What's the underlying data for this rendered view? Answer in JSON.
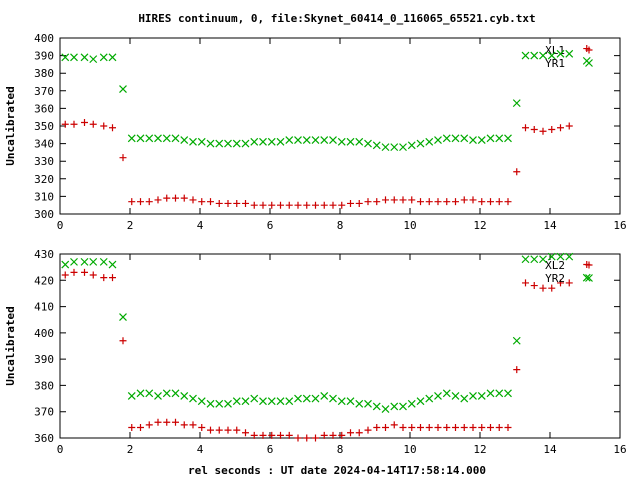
{
  "chart_data": {
    "type": "scatter",
    "title": "HIRES continuum, 0, file:Skynet_60414_0_116065_65521.cyb.txt",
    "xlabel": "rel seconds : UT date 2024-04-14T17:58:14.000",
    "colors": {
      "red": "#cc0000",
      "green": "#00aa00"
    },
    "x_shared": [
      0.2,
      0.4,
      0.8,
      1.0,
      1.2,
      1.4,
      1.8,
      2.0,
      2.2,
      2.4,
      2.6,
      2.8,
      3.0,
      3.2,
      3.4,
      3.6,
      3.8,
      4.0,
      4.2,
      4.4,
      4.6,
      4.8,
      5.0,
      5.2,
      5.4,
      5.6,
      5.8,
      6.0,
      6.2,
      6.4,
      6.6,
      6.8,
      7.0,
      7.2,
      7.4,
      7.6,
      7.8,
      8.0,
      8.2,
      8.4,
      8.6,
      8.8,
      9.0,
      9.2,
      9.4,
      9.6,
      9.8,
      10.0,
      10.2,
      10.4,
      10.6,
      10.8,
      11.0,
      11.2,
      11.4,
      11.6,
      11.8,
      12.0,
      12.2,
      12.4,
      12.6,
      12.8,
      13.0,
      13.2,
      13.4,
      13.6,
      13.8,
      14.0,
      14.2,
      14.4,
      15.0
    ],
    "panels": [
      {
        "ylabel": "Uncalibrated",
        "xlim": [
          0,
          16
        ],
        "ylim": [
          300,
          400
        ],
        "xticks": [
          0,
          2,
          4,
          6,
          8,
          10,
          12,
          14,
          16
        ],
        "yticks": [
          300,
          310,
          320,
          330,
          340,
          350,
          360,
          370,
          380,
          390,
          400
        ],
        "series": [
          {
            "name": "XL1",
            "marker": "plus",
            "color": "#cc0000",
            "x": [
              0.15,
              0.4,
              0.7,
              0.95,
              1.25,
              1.5,
              1.8,
              2.05,
              2.3,
              2.55,
              2.8,
              3.05,
              3.3,
              3.55,
              3.8,
              4.05,
              4.3,
              4.55,
              4.8,
              5.05,
              5.3,
              5.55,
              5.8,
              6.05,
              6.3,
              6.55,
              6.8,
              7.05,
              7.3,
              7.55,
              7.8,
              8.05,
              8.3,
              8.55,
              8.8,
              9.05,
              9.3,
              9.55,
              9.8,
              10.05,
              10.3,
              10.55,
              10.8,
              11.05,
              11.3,
              11.55,
              11.8,
              12.05,
              12.3,
              12.55,
              12.8,
              13.05,
              13.3,
              13.55,
              13.8,
              14.05,
              14.3,
              14.55,
              15.05
            ],
            "y": [
              351,
              351,
              352,
              351,
              350,
              349,
              332,
              307,
              307,
              307,
              308,
              309,
              309,
              309,
              308,
              307,
              307,
              306,
              306,
              306,
              306,
              305,
              305,
              305,
              305,
              305,
              305,
              305,
              305,
              305,
              305,
              305,
              306,
              306,
              307,
              307,
              308,
              308,
              308,
              308,
              307,
              307,
              307,
              307,
              307,
              308,
              308,
              307,
              307,
              307,
              307,
              324,
              349,
              348,
              347,
              348,
              349,
              350,
              394
            ]
          },
          {
            "name": "YR1",
            "marker": "cross",
            "color": "#00aa00",
            "x": [
              0.15,
              0.4,
              0.7,
              0.95,
              1.25,
              1.5,
              1.8,
              2.05,
              2.3,
              2.55,
              2.8,
              3.05,
              3.3,
              3.55,
              3.8,
              4.05,
              4.3,
              4.55,
              4.8,
              5.05,
              5.3,
              5.55,
              5.8,
              6.05,
              6.3,
              6.55,
              6.8,
              7.05,
              7.3,
              7.55,
              7.8,
              8.05,
              8.3,
              8.55,
              8.8,
              9.05,
              9.3,
              9.55,
              9.8,
              10.05,
              10.3,
              10.55,
              10.8,
              11.05,
              11.3,
              11.55,
              11.8,
              12.05,
              12.3,
              12.55,
              12.8,
              13.05,
              13.3,
              13.55,
              13.8,
              14.05,
              14.3,
              14.55,
              15.05
            ],
            "y": [
              389,
              389,
              389,
              388,
              389,
              389,
              371,
              343,
              343,
              343,
              343,
              343,
              343,
              342,
              341,
              341,
              340,
              340,
              340,
              340,
              340,
              341,
              341,
              341,
              341,
              342,
              342,
              342,
              342,
              342,
              342,
              341,
              341,
              341,
              340,
              339,
              338,
              338,
              338,
              339,
              340,
              341,
              342,
              343,
              343,
              343,
              342,
              342,
              343,
              343,
              343,
              363,
              390,
              390,
              390,
              390,
              391,
              391,
              387
            ]
          }
        ]
      },
      {
        "ylabel": "Uncalibrated",
        "xlim": [
          0,
          16
        ],
        "ylim": [
          360,
          430
        ],
        "xticks": [
          0,
          2,
          4,
          6,
          8,
          10,
          12,
          14,
          16
        ],
        "yticks": [
          360,
          370,
          380,
          390,
          400,
          410,
          420,
          430
        ],
        "series": [
          {
            "name": "XL2",
            "marker": "plus",
            "color": "#cc0000",
            "x": [
              0.15,
              0.4,
              0.7,
              0.95,
              1.25,
              1.5,
              1.8,
              2.05,
              2.3,
              2.55,
              2.8,
              3.05,
              3.3,
              3.55,
              3.8,
              4.05,
              4.3,
              4.55,
              4.8,
              5.05,
              5.3,
              5.55,
              5.8,
              6.05,
              6.3,
              6.55,
              6.8,
              7.05,
              7.3,
              7.55,
              7.8,
              8.05,
              8.3,
              8.55,
              8.8,
              9.05,
              9.3,
              9.55,
              9.8,
              10.05,
              10.3,
              10.55,
              10.8,
              11.05,
              11.3,
              11.55,
              11.8,
              12.05,
              12.3,
              12.55,
              12.8,
              13.05,
              13.3,
              13.55,
              13.8,
              14.05,
              14.3,
              14.55,
              15.05
            ],
            "y": [
              422,
              423,
              423,
              422,
              421,
              421,
              397,
              364,
              364,
              365,
              366,
              366,
              366,
              365,
              365,
              364,
              363,
              363,
              363,
              363,
              362,
              361,
              361,
              361,
              361,
              361,
              360,
              360,
              360,
              361,
              361,
              361,
              362,
              362,
              363,
              364,
              364,
              365,
              364,
              364,
              364,
              364,
              364,
              364,
              364,
              364,
              364,
              364,
              364,
              364,
              364,
              386,
              419,
              418,
              417,
              417,
              419,
              419,
              426
            ]
          },
          {
            "name": "YR2",
            "marker": "cross",
            "color": "#00aa00",
            "x": [
              0.15,
              0.4,
              0.7,
              0.95,
              1.25,
              1.5,
              1.8,
              2.05,
              2.3,
              2.55,
              2.8,
              3.05,
              3.3,
              3.55,
              3.8,
              4.05,
              4.3,
              4.55,
              4.8,
              5.05,
              5.3,
              5.55,
              5.8,
              6.05,
              6.3,
              6.55,
              6.8,
              7.05,
              7.3,
              7.55,
              7.8,
              8.05,
              8.3,
              8.55,
              8.8,
              9.05,
              9.3,
              9.55,
              9.8,
              10.05,
              10.3,
              10.55,
              10.8,
              11.05,
              11.3,
              11.55,
              11.8,
              12.05,
              12.3,
              12.55,
              12.8,
              13.05,
              13.3,
              13.55,
              13.8,
              14.05,
              14.3,
              14.55,
              15.05
            ],
            "y": [
              426,
              427,
              427,
              427,
              427,
              426,
              406,
              376,
              377,
              377,
              376,
              377,
              377,
              376,
              375,
              374,
              373,
              373,
              373,
              374,
              374,
              375,
              374,
              374,
              374,
              374,
              375,
              375,
              375,
              376,
              375,
              374,
              374,
              373,
              373,
              372,
              371,
              372,
              372,
              373,
              374,
              375,
              376,
              377,
              376,
              375,
              376,
              376,
              377,
              377,
              377,
              397,
              428,
              428,
              428,
              429,
              429,
              429,
              421
            ]
          }
        ]
      }
    ]
  }
}
